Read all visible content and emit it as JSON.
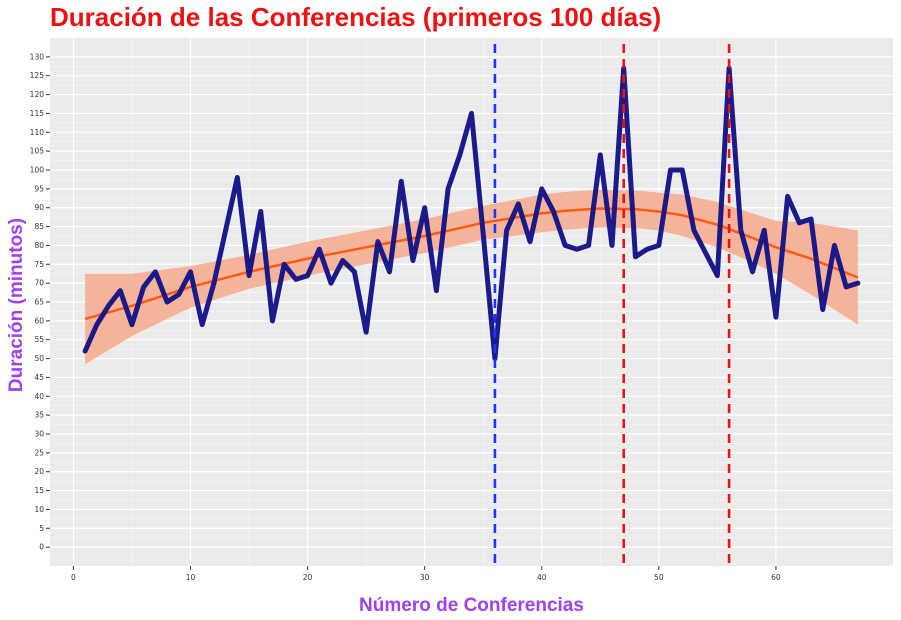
{
  "chart_data": {
    "type": "line",
    "title": "Duración de las Conferencias (primeros 100 días)",
    "xlabel": "Número de Conferencias",
    "ylabel": "Duración (minutos)",
    "xlim": [
      -2,
      70
    ],
    "ylim": [
      -5,
      135
    ],
    "x_ticks": [
      0,
      10,
      20,
      30,
      40,
      50,
      60
    ],
    "y_ticks": [
      0,
      5,
      10,
      15,
      20,
      25,
      30,
      35,
      40,
      45,
      50,
      55,
      60,
      65,
      70,
      75,
      80,
      85,
      90,
      95,
      100,
      105,
      110,
      115,
      120,
      125,
      130
    ],
    "grid": true,
    "series": [
      {
        "color": "#141487",
        "x": [
          1,
          2,
          3,
          4,
          5,
          6,
          7,
          8,
          9,
          10,
          11,
          12,
          13,
          14,
          15,
          16,
          17,
          18,
          19,
          20,
          21,
          22,
          23,
          24,
          25,
          26,
          27,
          28,
          29,
          30,
          31,
          32,
          33,
          34,
          35,
          36,
          37,
          38,
          39,
          40,
          41,
          42,
          43,
          44,
          45,
          46,
          47,
          48,
          49,
          50,
          51,
          52,
          53,
          54,
          55,
          56,
          57,
          58,
          59,
          60,
          61,
          62,
          63,
          64,
          65,
          66,
          67
        ],
        "y": [
          52,
          59,
          64,
          68,
          59,
          69,
          73,
          65,
          67,
          73,
          59,
          70,
          84,
          98,
          72,
          89,
          60,
          75,
          71,
          72,
          79,
          70,
          76,
          73,
          57,
          81,
          73,
          97,
          76,
          90,
          68,
          95,
          104,
          115,
          83,
          50,
          84,
          91,
          81,
          95,
          89,
          80,
          79,
          80,
          104,
          80,
          127,
          77,
          79,
          80,
          100,
          100,
          84,
          78,
          72,
          127,
          84,
          73,
          84,
          61,
          93,
          86,
          87,
          63,
          80,
          69,
          70
        ]
      }
    ],
    "trend": {
      "color": "#ff5a14",
      "band_color": "#f7a98b",
      "x": [
        1,
        5,
        10,
        15,
        20,
        25,
        30,
        35,
        40,
        42,
        45,
        48,
        50,
        52,
        55,
        58,
        60,
        63,
        67
      ],
      "y": [
        60.5,
        64,
        69,
        73,
        76.5,
        79.5,
        82.5,
        86,
        88.5,
        89.2,
        89.8,
        89.6,
        89,
        88,
        85.5,
        82,
        79.5,
        76.5,
        71.5
      ],
      "lower": [
        48.5,
        56,
        63.5,
        68.5,
        72,
        75,
        78,
        81.5,
        83.5,
        84.2,
        84.8,
        84.6,
        84,
        82.5,
        79.5,
        75.5,
        72.5,
        67,
        59
      ],
      "upper": [
        72.5,
        72.5,
        74.5,
        77.5,
        81,
        84,
        87,
        90.5,
        93.5,
        94.2,
        94.8,
        94.6,
        94,
        93.5,
        91.5,
        88.5,
        86.5,
        86,
        84
      ]
    },
    "reference_lines": [
      {
        "x": 36,
        "color": "#1f35ff"
      },
      {
        "x": 47,
        "color": "#ee1111"
      },
      {
        "x": 56,
        "color": "#ee1111"
      }
    ]
  }
}
